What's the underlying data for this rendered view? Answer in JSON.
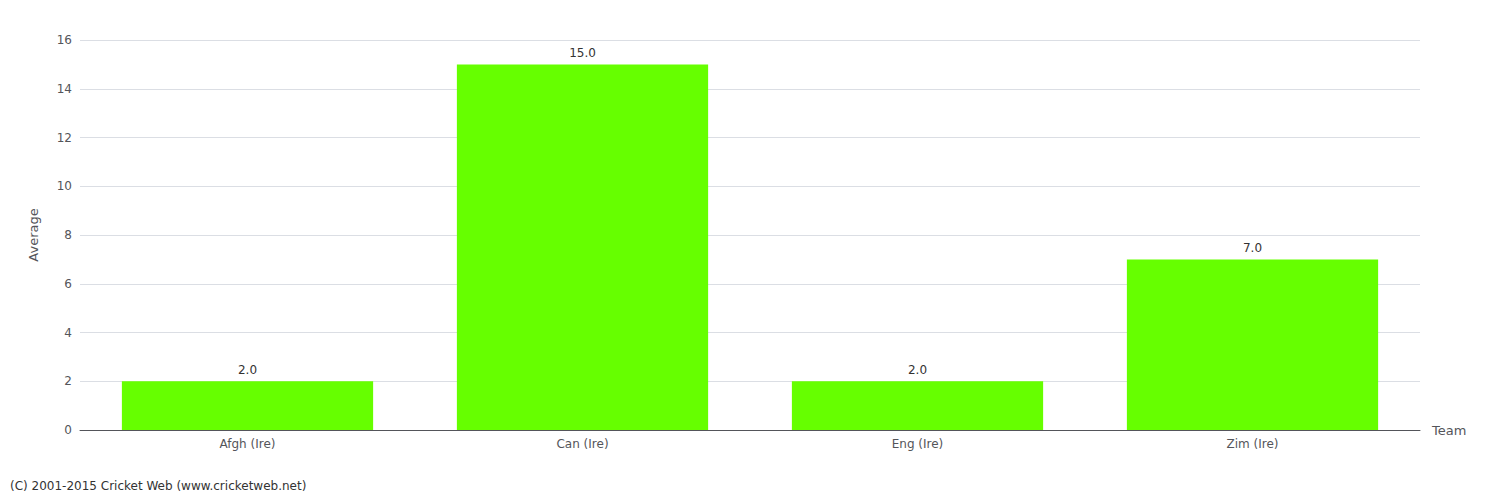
{
  "chart_data": {
    "type": "bar",
    "categories": [
      "Afgh (Ire)",
      "Can (Ire)",
      "Eng (Ire)",
      "Zim (Ire)"
    ],
    "values": [
      2.0,
      15.0,
      2.0,
      7.0
    ],
    "value_labels": [
      "2.0",
      "15.0",
      "2.0",
      "7.0"
    ],
    "data_labels": true,
    "color": "#66ff00",
    "xlabel": "Team",
    "ylabel": "Average",
    "ylim": [
      0,
      16
    ],
    "yticks": [
      0,
      2,
      4,
      6,
      8,
      10,
      12,
      14,
      16
    ],
    "grid": true,
    "annotations": [
      "(C) 2001-2015 Cricket Web (www.cricketweb.net)"
    ]
  }
}
